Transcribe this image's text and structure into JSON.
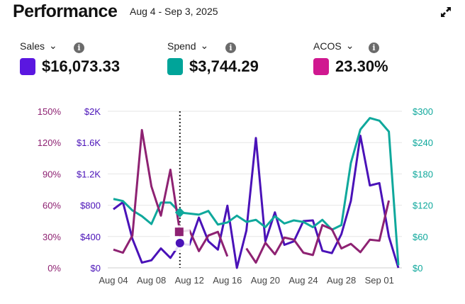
{
  "header": {
    "title": "Performance",
    "date_range": "Aug 4 - Sep 3, 2025"
  },
  "metrics": [
    {
      "label": "Sales",
      "value": "$16,073.33",
      "color": "#5a17e0"
    },
    {
      "label": "Spend",
      "value": "$3,744.29",
      "color": "#00a499"
    },
    {
      "label": "ACOS",
      "value": "23.30%",
      "color": "#d01890"
    }
  ],
  "chart_data": {
    "type": "line",
    "x": [
      "Aug 04",
      "Aug 05",
      "Aug 06",
      "Aug 07",
      "Aug 08",
      "Aug 09",
      "Aug 10",
      "Aug 11",
      "Aug 12",
      "Aug 13",
      "Aug 14",
      "Aug 15",
      "Aug 16",
      "Aug 17",
      "Aug 18",
      "Aug 19",
      "Aug 20",
      "Aug 21",
      "Aug 22",
      "Aug 23",
      "Aug 24",
      "Aug 25",
      "Aug 26",
      "Aug 27",
      "Aug 28",
      "Aug 29",
      "Aug 30",
      "Aug 31",
      "Sep 01",
      "Sep 02",
      "Sep 03"
    ],
    "x_ticks": [
      "Aug 04",
      "Aug 08",
      "Aug 12",
      "Aug 16",
      "Aug 20",
      "Aug 24",
      "Aug 28",
      "Sep 01"
    ],
    "series": [
      {
        "name": "Sales",
        "axis": "left-sales",
        "color": "#4a12b8",
        "values": [
          748,
          839,
          370,
          67,
          97,
          248,
          127,
          309,
          294,
          642,
          339,
          233,
          794,
          0,
          476,
          1658,
          339,
          709,
          294,
          339,
          597,
          606,
          218,
          188,
          430,
          855,
          1688,
          1052,
          1082,
          400,
          0
        ]
      },
      {
        "name": "Spend",
        "axis": "right",
        "color": "#0fa89c",
        "values": [
          132,
          128,
          110,
          99,
          84,
          125,
          125,
          106,
          104,
          102,
          109,
          83,
          87,
          100,
          88,
          92,
          78,
          99,
          85,
          91,
          88,
          78,
          92,
          73,
          82,
          201,
          265,
          287,
          282,
          261,
          5
        ]
      },
      {
        "name": "ACOS",
        "axis": "left-acos",
        "color": "#8e2272",
        "values": [
          17.5,
          14.5,
          31,
          132,
          78,
          50,
          94,
          34.5,
          36,
          16,
          31,
          34.5,
          11,
          null,
          18.6,
          5,
          24,
          13,
          29,
          27,
          14.5,
          12.3,
          41,
          37,
          18.6,
          23,
          15,
          27,
          26,
          64.5,
          null
        ]
      }
    ],
    "y_acos": {
      "ticks": [
        "0%",
        "30%",
        "60%",
        "90%",
        "120%",
        "150%"
      ],
      "range": [
        0,
        150
      ]
    },
    "y_sales": {
      "ticks": [
        "$0",
        "$400",
        "$800",
        "$1.2K",
        "$1.6K",
        "$2K"
      ],
      "range": [
        0,
        2000
      ]
    },
    "y_spend": {
      "ticks": [
        "$0",
        "$60",
        "$120",
        "$180",
        "$240",
        "$300"
      ],
      "range": [
        0,
        300
      ]
    },
    "hover_index": 7,
    "grid": true
  }
}
